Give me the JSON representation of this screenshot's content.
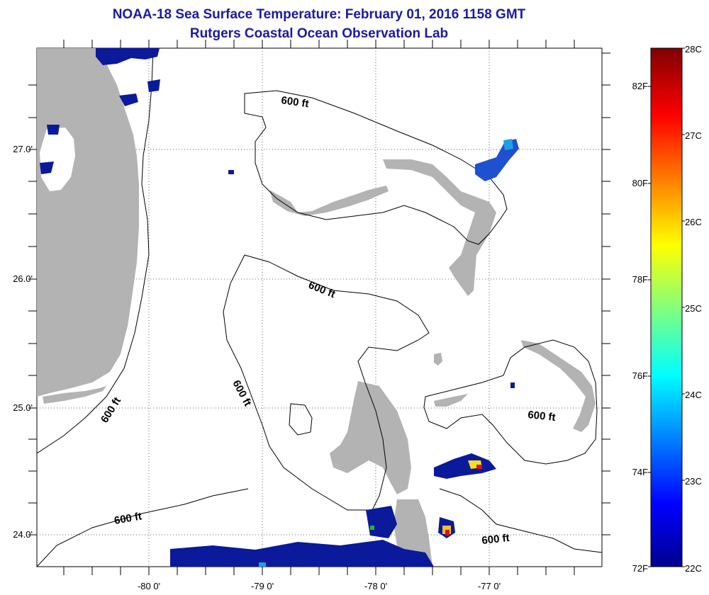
{
  "title": "NOAA-18 Sea Surface Temperature:  February 01, 2016 1158 GMT",
  "subtitle": "Rutgers Coastal Ocean Observation Lab",
  "lat_labels": [
    "27.0'",
    "26.0'",
    "25.0'",
    "24.0'"
  ],
  "lon_labels": [
    "-80 0'",
    "-79 0'",
    "-78 0'",
    "-77 0'"
  ],
  "isobath_label": "600 ft",
  "colorbar": {
    "fahrenheit_labels": [
      "82F",
      "80F",
      "78F",
      "76F",
      "74F",
      "72F"
    ],
    "celsius_labels": [
      "28C",
      "27C",
      "26C",
      "25C",
      "24C",
      "23C",
      "22C"
    ],
    "min_c": 22,
    "max_c": 28
  },
  "colors": {
    "title": "#1a1aa6",
    "land": "#b3b3b3",
    "cold_sst": "#0a1a9a",
    "warm_sst": "#e01010"
  }
}
